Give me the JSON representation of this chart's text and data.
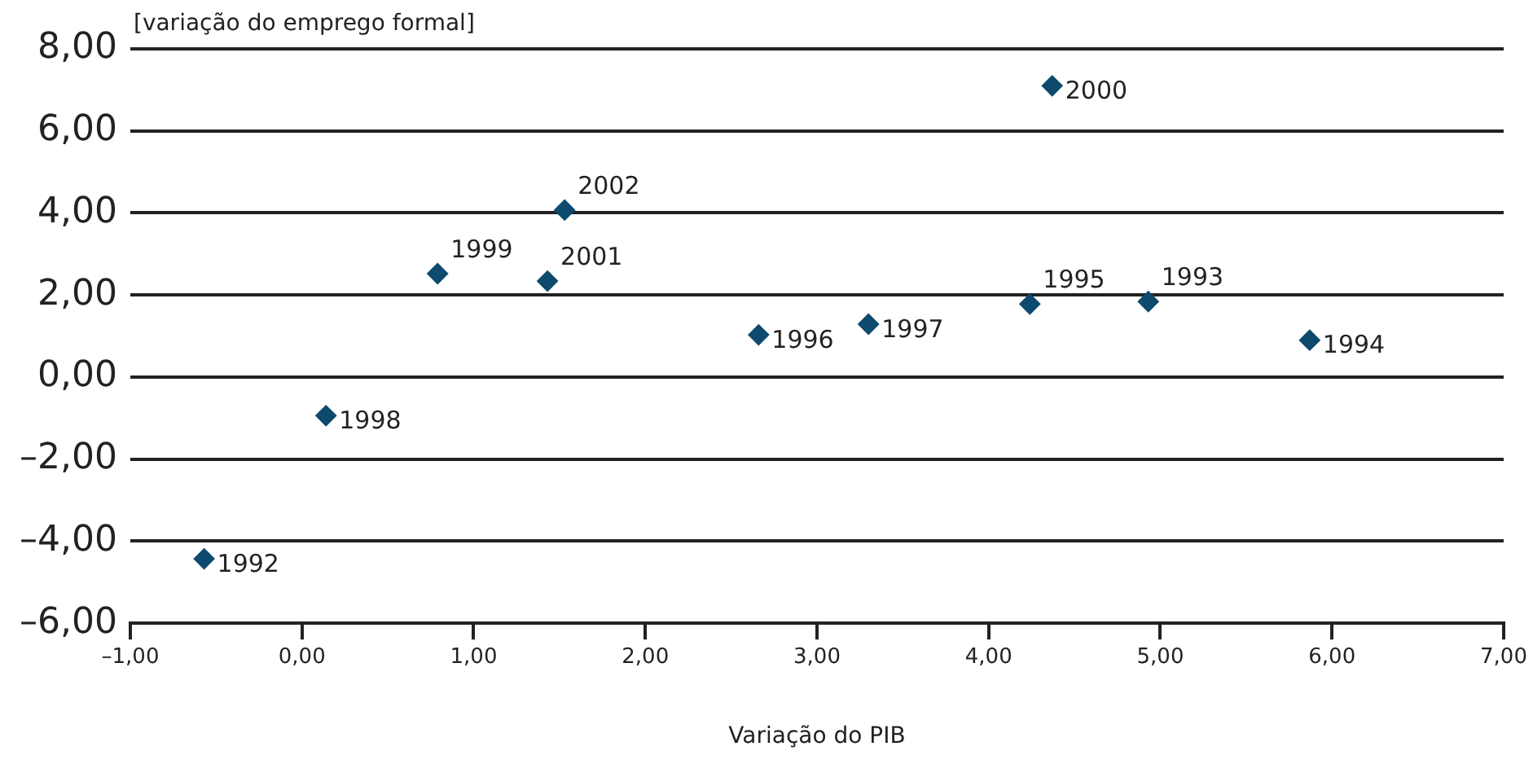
{
  "chart_data": {
    "type": "scatter",
    "xlabel": "Variação do PIB",
    "ylabel": "[variação do emprego formal]",
    "series": [
      {
        "color": "#0d4a6e",
        "x": [
          -0.57,
          4.93,
          5.87,
          4.24,
          2.66,
          3.3,
          0.14,
          0.79,
          4.37,
          1.43,
          1.53
        ],
        "values": [
          -4.43,
          1.84,
          0.9,
          1.78,
          1.03,
          1.29,
          -0.94,
          2.52,
          7.1,
          2.34,
          4.07
        ]
      }
    ],
    "annotations": [
      {
        "text": "1992",
        "x": -0.57,
        "y": -4.43
      },
      {
        "text": "1993",
        "x": 4.93,
        "y": 1.84
      },
      {
        "text": "1994",
        "x": 5.87,
        "y": 0.9
      },
      {
        "text": "1995",
        "x": 4.24,
        "y": 1.78
      },
      {
        "text": "1996",
        "x": 2.66,
        "y": 1.03
      },
      {
        "text": "1997",
        "x": 3.3,
        "y": 1.29
      },
      {
        "text": "1998",
        "x": 0.14,
        "y": -0.94
      },
      {
        "text": "1999",
        "x": 0.79,
        "y": 2.52
      },
      {
        "text": "2000",
        "x": 4.37,
        "y": 7.1
      },
      {
        "text": "2001",
        "x": 1.43,
        "y": 2.34
      },
      {
        "text": "2002",
        "x": 1.53,
        "y": 4.07
      }
    ],
    "xlim": [
      -1,
      7
    ],
    "xticks": [
      {
        "value": -1,
        "label": "–1,00"
      },
      {
        "value": 0,
        "label": "0,00"
      },
      {
        "value": 1,
        "label": "1,00"
      },
      {
        "value": 2,
        "label": "2,00"
      },
      {
        "value": 3,
        "label": "3,00"
      },
      {
        "value": 4,
        "label": "4,00"
      },
      {
        "value": 5,
        "label": "5,00"
      },
      {
        "value": 6,
        "label": "6,00"
      },
      {
        "value": 7,
        "label": "7,00"
      }
    ],
    "ylim": [
      -6,
      8
    ],
    "yticks": [
      {
        "value": -6,
        "label": "–6,00"
      },
      {
        "value": -4,
        "label": "–4,00"
      },
      {
        "value": -2,
        "label": "–2,00"
      },
      {
        "value": 0,
        "label": "0,00"
      },
      {
        "value": 2,
        "label": "2,00"
      },
      {
        "value": 4,
        "label": "4,00"
      },
      {
        "value": 6,
        "label": "6,00"
      },
      {
        "value": 8,
        "label": "8,00"
      }
    ],
    "grid": "y",
    "marker": "diamond",
    "legend": false
  }
}
